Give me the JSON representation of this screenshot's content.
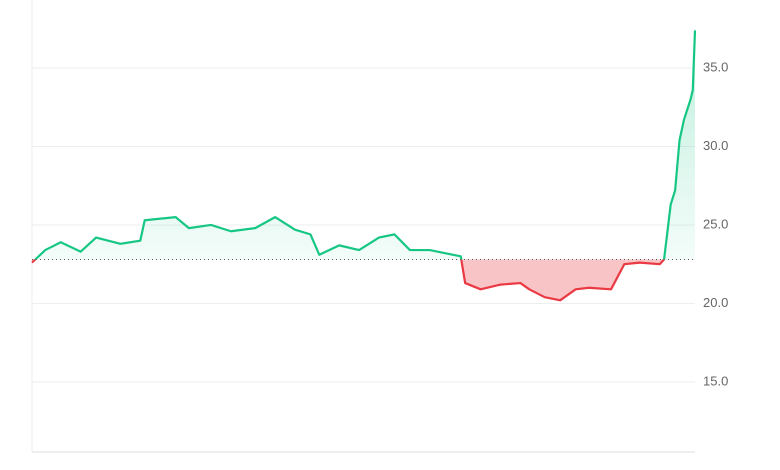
{
  "chart_data": {
    "type": "line",
    "x": [
      3.0,
      3.6,
      4.3,
      5.2,
      5.9,
      7.0,
      7.9,
      8.1,
      9.5,
      10.1,
      11.1,
      12.0,
      13.1,
      14.0,
      14.9,
      15.6,
      16.0,
      16.9,
      17.8,
      18.7,
      19.4,
      20.1,
      21.0,
      22.4,
      22.6,
      23.3,
      24.2,
      25.1,
      25.5,
      26.2,
      26.9,
      27.6,
      28.2,
      29.2,
      29.8,
      30.5,
      31.4,
      31.6,
      31.9,
      32.1,
      32.3,
      32.5,
      32.8,
      32.9,
      33.0
    ],
    "values": [
      22.6,
      23.4,
      23.9,
      23.3,
      24.2,
      23.8,
      24.0,
      25.3,
      25.5,
      24.8,
      25.0,
      24.6,
      24.8,
      25.5,
      24.7,
      24.4,
      23.1,
      23.7,
      23.4,
      24.2,
      24.4,
      23.4,
      23.4,
      23.0,
      21.3,
      20.9,
      21.2,
      21.3,
      20.9,
      20.4,
      20.2,
      20.9,
      21.0,
      20.9,
      22.5,
      22.6,
      22.5,
      22.8,
      26.3,
      27.2,
      30.4,
      31.7,
      33.0,
      33.6,
      37.4
    ],
    "baseline": 22.8,
    "up_color": "#16c784",
    "down_color": "#ea3943",
    "xlim": [
      3,
      33
    ],
    "ylim": [
      10.6,
      39.3
    ],
    "yticks": [
      {
        "value": 15,
        "label": "15.0"
      },
      {
        "value": 20,
        "label": "20.0"
      },
      {
        "value": 25,
        "label": "25.0"
      },
      {
        "value": 30,
        "label": "30.0"
      },
      {
        "value": 35,
        "label": "35.0"
      }
    ],
    "grid": true
  }
}
